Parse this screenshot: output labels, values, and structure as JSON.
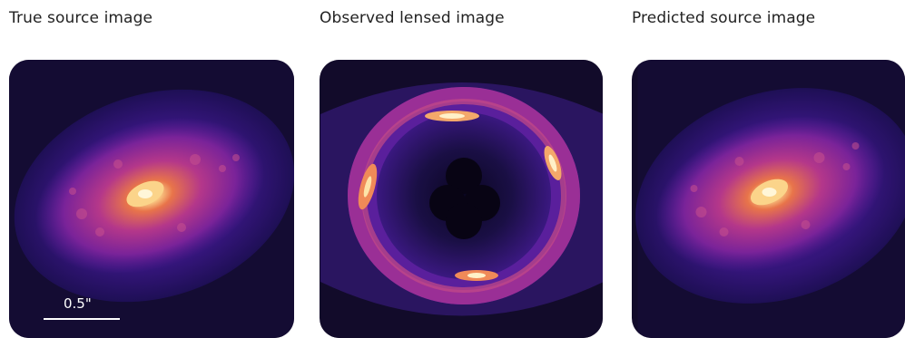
{
  "panels": [
    {
      "title": "True source image",
      "image": "spiral-galaxy"
    },
    {
      "title": "Observed lensed image",
      "image": "einstein-ring"
    },
    {
      "title": "Predicted source image",
      "image": "spiral-galaxy-reconstruction"
    }
  ],
  "scalebar": {
    "label": "0.5\""
  },
  "colormap": [
    "#0d0829",
    "#2b1267",
    "#6a1f9a",
    "#b4378a",
    "#e8744a",
    "#fbd48a",
    "#fff6d8"
  ]
}
